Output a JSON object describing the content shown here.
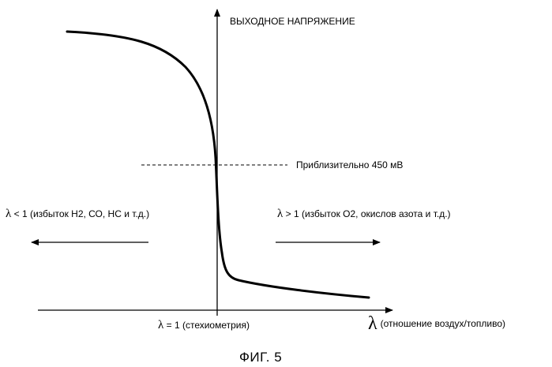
{
  "y_axis_label": "ВЫХОДНОЕ НАПРЯЖЕНИЕ",
  "reference_line_label": "Приблизительно 450 мВ",
  "left_region": {
    "symbol": "λ",
    "text": " < 1 (избыток Н2, СО, НС и т.д.)"
  },
  "right_region": {
    "symbol": "λ",
    "text": " > 1 (избыток О2, окислов азота и т.д.)"
  },
  "x_center_label": {
    "symbol": "λ",
    "text": " = 1 (стехиометрия)"
  },
  "x_axis_label": {
    "symbol": "λ",
    "text": "(отношение воздух/топливо)"
  },
  "caption": "ФИГ. 5",
  "colors": {
    "line": "#000000",
    "background": "#ffffff"
  }
}
